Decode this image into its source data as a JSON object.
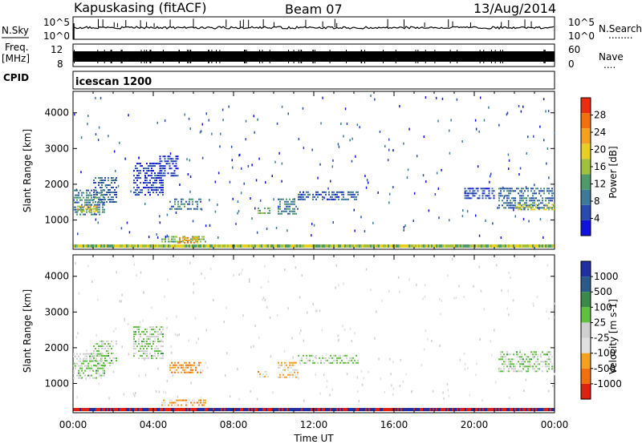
{
  "header": {
    "station": "Kapuskasing (fitACF)",
    "beam": "Beam 07",
    "date": "13/Aug/2014"
  },
  "strips": {
    "noise_label": "N.Sky",
    "noise_left_ticks": [
      "10^5",
      "10^0"
    ],
    "noise_right_ticks": [
      "10^5",
      "10^0"
    ],
    "noise_right_label": "N.Search",
    "noise_right_dots": "........",
    "freq_label_line1": "Freq.",
    "freq_label_line2": "[MHz]",
    "freq_left_ticks": [
      "12",
      "8"
    ],
    "freq_right_ticks": [
      "60",
      "0"
    ],
    "nave_label": "Nave",
    "nave_dots": "....",
    "cpid_label": "CPID",
    "cpid_value": "icescan 1200"
  },
  "chart_data": [
    {
      "type": "heatmap",
      "title": "",
      "ylabel": "Slant Range [km]",
      "yticks": [
        "1000",
        "2000",
        "3000",
        "4000"
      ],
      "ylim": [
        180,
        4600
      ],
      "xlim": [
        0,
        24
      ],
      "colorbar_label": "Power [dB]",
      "colorbar_ticks": [
        "4",
        "8",
        "12",
        "16",
        "20",
        "24",
        "28"
      ],
      "colorbar_colors": [
        "#1010e0",
        "#2a4ab0",
        "#3d7a9a",
        "#4f9a6a",
        "#a0c040",
        "#e8d020",
        "#f4a020",
        "#f07010",
        "#ee2a10"
      ],
      "echo_regions": [
        {
          "t0": 0.0,
          "t1": 1.6,
          "r0": 1150,
          "r1": 1850,
          "level": 0.3
        },
        {
          "t0": 0.2,
          "t1": 1.2,
          "r0": 1200,
          "r1": 1400,
          "level": 0.6
        },
        {
          "t0": 1.0,
          "t1": 2.2,
          "r0": 1500,
          "r1": 2200,
          "level": 0.25
        },
        {
          "t0": 3.0,
          "t1": 4.5,
          "r0": 1700,
          "r1": 2600,
          "level": 0.15
        },
        {
          "t0": 4.3,
          "t1": 5.2,
          "r0": 2200,
          "r1": 2800,
          "level": 0.12
        },
        {
          "t0": 4.8,
          "t1": 6.4,
          "r0": 1300,
          "r1": 1600,
          "level": 0.3
        },
        {
          "t0": 4.4,
          "t1": 6.6,
          "r0": 350,
          "r1": 550,
          "level": 0.45
        },
        {
          "t0": 5.2,
          "t1": 6.2,
          "r0": 380,
          "r1": 520,
          "level": 0.75
        },
        {
          "t0": 9.2,
          "t1": 9.8,
          "r0": 1150,
          "r1": 1350,
          "level": 0.4
        },
        {
          "t0": 10.2,
          "t1": 11.2,
          "r0": 1150,
          "r1": 1600,
          "level": 0.3
        },
        {
          "t0": 11.2,
          "t1": 14.2,
          "r0": 1550,
          "r1": 1800,
          "level": 0.2
        },
        {
          "t0": 19.5,
          "t1": 21.0,
          "r0": 1600,
          "r1": 1900,
          "level": 0.15
        },
        {
          "t0": 21.2,
          "t1": 24.0,
          "r0": 1300,
          "r1": 1900,
          "level": 0.25
        },
        {
          "t0": 22.0,
          "t1": 24.0,
          "r0": 1300,
          "r1": 1450,
          "level": 0.55
        }
      ]
    },
    {
      "type": "heatmap",
      "title": "",
      "ylabel": "Slant Range [km]",
      "yticks": [
        "1000",
        "2000",
        "3000",
        "4000"
      ],
      "ylim": [
        180,
        4600
      ],
      "xlim": [
        0,
        24
      ],
      "xlabel": "Time UT",
      "xticks": [
        "00:00",
        "04:00",
        "08:00",
        "12:00",
        "16:00",
        "20:00",
        "00:00"
      ],
      "colorbar_label": "Velocity [m s-1]",
      "colorbar_ticks": [
        "1000",
        "500",
        "100",
        "25",
        "-25",
        "-100",
        "-500",
        "-1000"
      ],
      "colorbar_colors": [
        "#2030a0",
        "#2a5a8a",
        "#3a8a4a",
        "#60c040",
        "#cfcfcf",
        "#e0e0e0",
        "#f4a020",
        "#f07010",
        "#e02010"
      ],
      "echo_regions": [
        {
          "t0": 0.0,
          "t1": 1.6,
          "r0": 1150,
          "r1": 1850,
          "level": 0.55
        },
        {
          "t0": 1.0,
          "t1": 2.2,
          "r0": 1500,
          "r1": 2200,
          "level": 0.55
        },
        {
          "t0": 3.0,
          "t1": 4.5,
          "r0": 1700,
          "r1": 2600,
          "level": 0.55
        },
        {
          "t0": 4.8,
          "t1": 6.4,
          "r0": 1300,
          "r1": 1600,
          "level": 0.25
        },
        {
          "t0": 4.4,
          "t1": 6.6,
          "r0": 350,
          "r1": 550,
          "level": 0.3
        },
        {
          "t0": 9.2,
          "t1": 9.8,
          "r0": 1150,
          "r1": 1350,
          "level": 0.3
        },
        {
          "t0": 10.2,
          "t1": 11.2,
          "r0": 1150,
          "r1": 1600,
          "level": 0.35
        },
        {
          "t0": 11.2,
          "t1": 14.2,
          "r0": 1550,
          "r1": 1800,
          "level": 0.55
        },
        {
          "t0": 21.2,
          "t1": 24.0,
          "r0": 1300,
          "r1": 1900,
          "level": 0.55
        }
      ]
    }
  ]
}
